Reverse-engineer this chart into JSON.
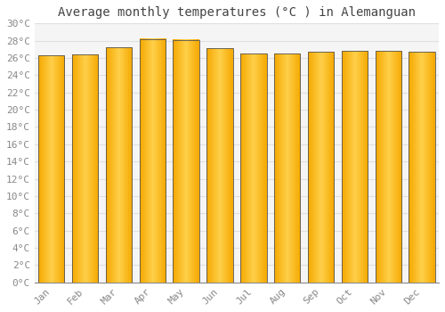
{
  "title": "Average monthly temperatures (°C ) in Alemanguan",
  "months": [
    "Jan",
    "Feb",
    "Mar",
    "Apr",
    "May",
    "Jun",
    "Jul",
    "Aug",
    "Sep",
    "Oct",
    "Nov",
    "Dec"
  ],
  "values": [
    26.3,
    26.4,
    27.2,
    28.2,
    28.1,
    27.1,
    26.5,
    26.5,
    26.7,
    26.8,
    26.8,
    26.7
  ],
  "bar_color_center": "#FFD04A",
  "bar_color_edge": "#F5A800",
  "bar_border_color": "#555555",
  "background_color": "#FFFFFF",
  "plot_bg_color": "#F5F5F5",
  "grid_color": "#E0E0E0",
  "tick_color": "#888888",
  "title_color": "#444444",
  "ylim": [
    0,
    30
  ],
  "yticks": [
    0,
    2,
    4,
    6,
    8,
    10,
    12,
    14,
    16,
    18,
    20,
    22,
    24,
    26,
    28,
    30
  ],
  "title_fontsize": 10,
  "tick_fontsize": 8,
  "bar_width": 0.78
}
